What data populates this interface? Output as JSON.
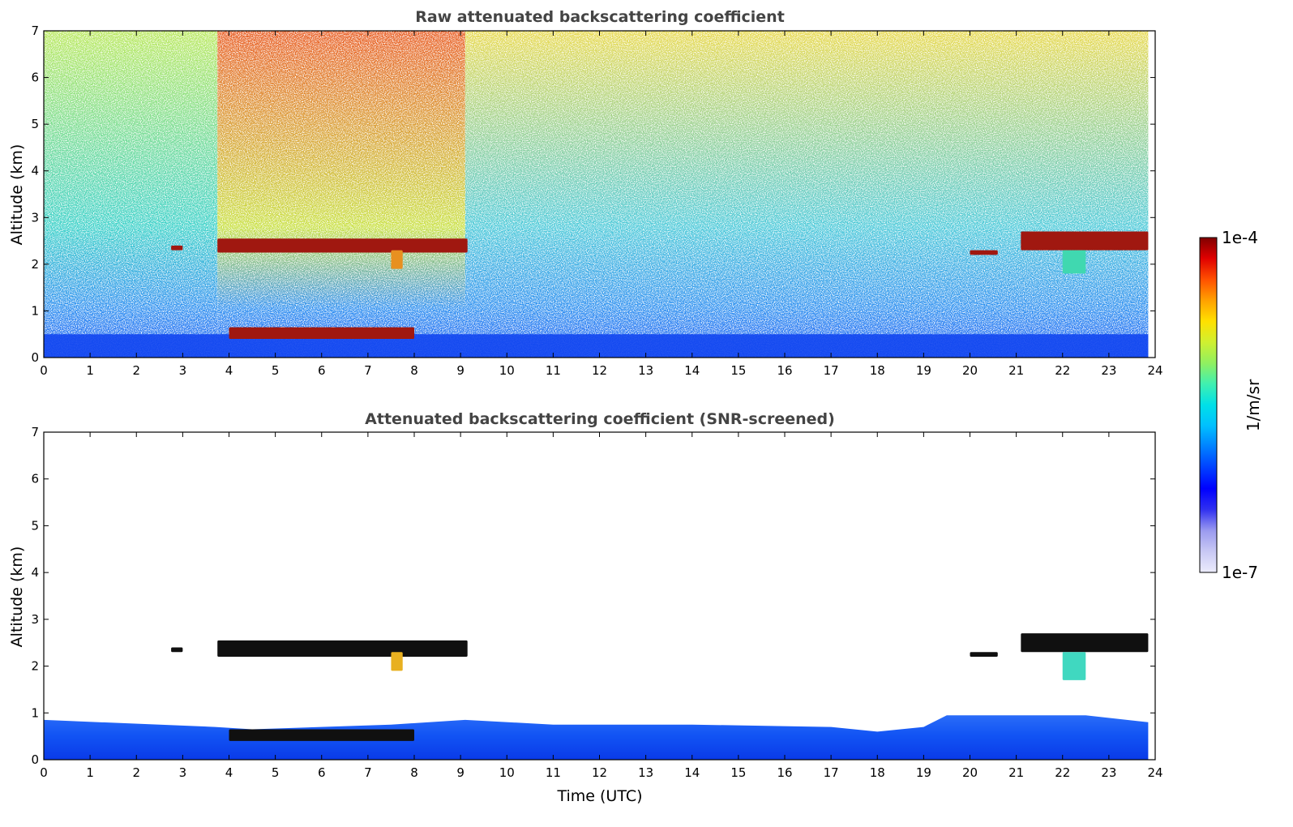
{
  "chart_data": [
    {
      "type": "heatmap",
      "title": "Raw attenuated backscattering coefficient",
      "xlabel": "",
      "ylabel": "Altitude (km)",
      "xlim": [
        0,
        24
      ],
      "ylim": [
        0,
        7
      ],
      "xticks": [
        "0",
        "1",
        "2",
        "3",
        "4",
        "5",
        "6",
        "7",
        "8",
        "9",
        "10",
        "11",
        "12",
        "13",
        "14",
        "15",
        "16",
        "17",
        "18",
        "19",
        "20",
        "21",
        "22",
        "23",
        "24"
      ],
      "yticks": [
        "0",
        "1",
        "2",
        "3",
        "4",
        "5",
        "6",
        "7"
      ],
      "data_end_time": 23.85,
      "noise_bands": [
        {
          "x": [
            0,
            3.75
          ],
          "mid_alt_color": "#38d0c8",
          "high_alt_color": "#b8e858"
        },
        {
          "x": [
            3.75,
            9.1
          ],
          "mid_alt_color": "#c8e040",
          "high_alt_color": "#e85a20"
        },
        {
          "x": [
            9.1,
            23.85
          ],
          "mid_alt_color": "#48c8d8",
          "high_alt_color": "#e8d848"
        }
      ],
      "boundary_layer": {
        "top_km": 0.5,
        "color": "#1448f0"
      },
      "features": [
        {
          "name": "cloud layer",
          "x": [
            3.75,
            9.15
          ],
          "alt_km": [
            2.25,
            2.55
          ],
          "color": "#a01810"
        },
        {
          "name": "cloud layer",
          "x": [
            2.75,
            3.0
          ],
          "alt_km": [
            2.3,
            2.4
          ],
          "color": "#a01810"
        },
        {
          "name": "cloud layer",
          "x": [
            20.0,
            20.6
          ],
          "alt_km": [
            2.2,
            2.3
          ],
          "color": "#a01810"
        },
        {
          "name": "cloud layer",
          "x": [
            21.1,
            23.85
          ],
          "alt_km": [
            2.3,
            2.7
          ],
          "color": "#a01810"
        },
        {
          "name": "low cloud",
          "x": [
            4.0,
            8.0
          ],
          "alt_km": [
            0.4,
            0.65
          ],
          "color": "#a01810"
        },
        {
          "name": "virga",
          "x": [
            22.0,
            22.5
          ],
          "alt_km": [
            1.8,
            2.3
          ],
          "color": "#40d8b0"
        },
        {
          "name": "virga",
          "x": [
            7.5,
            7.75
          ],
          "alt_km": [
            1.9,
            2.3
          ],
          "color": "#e89020"
        }
      ]
    },
    {
      "type": "heatmap",
      "title": "Attenuated backscattering coefficient (SNR-screened)",
      "xlabel": "Time (UTC)",
      "ylabel": "Altitude (km)",
      "xlim": [
        0,
        24
      ],
      "ylim": [
        0,
        7
      ],
      "xticks": [
        "0",
        "1",
        "2",
        "3",
        "4",
        "5",
        "6",
        "7",
        "8",
        "9",
        "10",
        "11",
        "12",
        "13",
        "14",
        "15",
        "16",
        "17",
        "18",
        "19",
        "20",
        "21",
        "22",
        "23",
        "24"
      ],
      "yticks": [
        "0",
        "1",
        "2",
        "3",
        "4",
        "5",
        "6",
        "7"
      ],
      "data_end_time": 23.85,
      "boundary_layer_top_km": [
        [
          0,
          0.85
        ],
        [
          3.7,
          0.7
        ],
        [
          4.5,
          0.65
        ],
        [
          7.5,
          0.75
        ],
        [
          9.1,
          0.85
        ],
        [
          11,
          0.75
        ],
        [
          14,
          0.75
        ],
        [
          17,
          0.7
        ],
        [
          18,
          0.6
        ],
        [
          19,
          0.7
        ],
        [
          19.5,
          0.95
        ],
        [
          21,
          0.95
        ],
        [
          22.5,
          0.95
        ],
        [
          23.85,
          0.8
        ]
      ],
      "features": [
        {
          "name": "cloud layer",
          "x": [
            3.75,
            9.15
          ],
          "alt_km": [
            2.2,
            2.55
          ],
          "color": "#101010"
        },
        {
          "name": "cloud layer",
          "x": [
            2.75,
            3.0
          ],
          "alt_km": [
            2.3,
            2.4
          ],
          "color": "#101010"
        },
        {
          "name": "cloud layer",
          "x": [
            20.0,
            20.6
          ],
          "alt_km": [
            2.2,
            2.3
          ],
          "color": "#101010"
        },
        {
          "name": "cloud layer",
          "x": [
            21.1,
            23.85
          ],
          "alt_km": [
            2.3,
            2.7
          ],
          "color": "#101010"
        },
        {
          "name": "low cloud",
          "x": [
            4.0,
            8.0
          ],
          "alt_km": [
            0.4,
            0.65
          ],
          "color": "#101010"
        },
        {
          "name": "virga",
          "x": [
            22.0,
            22.5
          ],
          "alt_km": [
            1.7,
            2.3
          ],
          "color": "#40d8c0"
        },
        {
          "name": "virga",
          "x": [
            7.5,
            7.75
          ],
          "alt_km": [
            1.9,
            2.3
          ],
          "color": "#e8b020"
        }
      ]
    }
  ],
  "colorbar": {
    "label": "1/m/sr",
    "max_label": "1e-4",
    "min_label": "1e-7",
    "colors": [
      "#ececfc",
      "#c8c8f4",
      "#9a9af0",
      "#3030f0",
      "#0000ff",
      "#0040ff",
      "#0080ff",
      "#00c0ff",
      "#00e0e8",
      "#40f0b0",
      "#90f060",
      "#d0f030",
      "#ffe000",
      "#ffa000",
      "#ff5000",
      "#e00000",
      "#800000"
    ]
  }
}
